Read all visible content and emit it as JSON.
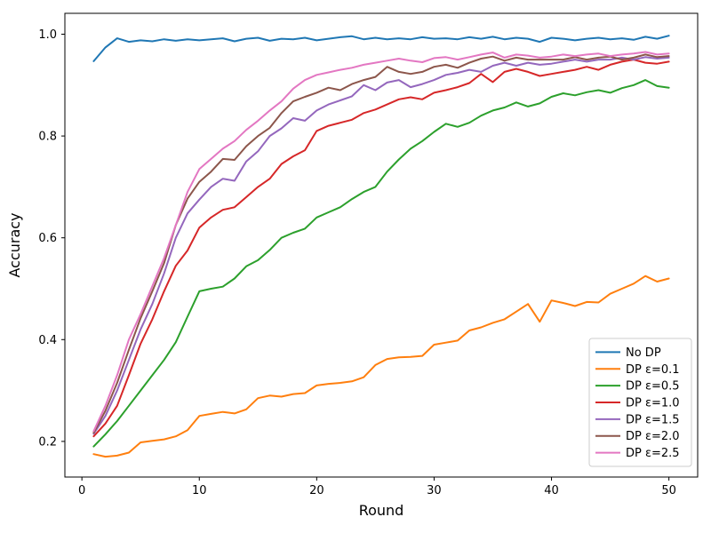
{
  "figure": {
    "background": "#ffffff",
    "spine_color": "#000000",
    "tick_color": "#000000",
    "legend_border_color": "#cccccc",
    "legend_background": "#ffffff"
  },
  "chart_data": {
    "type": "line",
    "title": "",
    "xlabel": "Round",
    "ylabel": "Accuracy",
    "xlim": [
      -1.45,
      52.45
    ],
    "ylim": [
      0.13,
      1.041
    ],
    "xticks": [
      0,
      10,
      20,
      30,
      40,
      50
    ],
    "yticks": [
      0.2,
      0.4,
      0.6,
      0.8,
      1.0
    ],
    "grid": false,
    "legend_position": "lower right",
    "line_width": 2,
    "x": [
      1,
      2,
      3,
      4,
      5,
      6,
      7,
      8,
      9,
      10,
      11,
      12,
      13,
      14,
      15,
      16,
      17,
      18,
      19,
      20,
      21,
      22,
      23,
      24,
      25,
      26,
      27,
      28,
      29,
      30,
      31,
      32,
      33,
      34,
      35,
      36,
      37,
      38,
      39,
      40,
      41,
      42,
      43,
      44,
      45,
      46,
      47,
      48,
      49,
      50
    ],
    "series": [
      {
        "name": "No DP",
        "color": "#1f77b4",
        "values": [
          0.947,
          0.974,
          0.992,
          0.985,
          0.988,
          0.986,
          0.99,
          0.987,
          0.99,
          0.988,
          0.99,
          0.992,
          0.986,
          0.991,
          0.993,
          0.987,
          0.991,
          0.99,
          0.993,
          0.988,
          0.991,
          0.994,
          0.996,
          0.99,
          0.993,
          0.99,
          0.992,
          0.99,
          0.994,
          0.991,
          0.992,
          0.99,
          0.994,
          0.991,
          0.995,
          0.99,
          0.993,
          0.991,
          0.985,
          0.993,
          0.991,
          0.988,
          0.991,
          0.993,
          0.99,
          0.992,
          0.989,
          0.995,
          0.991,
          0.997
        ]
      },
      {
        "name": "DP ε=0.1",
        "color": "#ff7f0e",
        "values": [
          0.175,
          0.17,
          0.172,
          0.178,
          0.198,
          0.201,
          0.204,
          0.21,
          0.222,
          0.25,
          0.254,
          0.258,
          0.255,
          0.263,
          0.285,
          0.29,
          0.288,
          0.293,
          0.295,
          0.31,
          0.313,
          0.315,
          0.318,
          0.326,
          0.35,
          0.362,
          0.365,
          0.366,
          0.368,
          0.39,
          0.394,
          0.398,
          0.418,
          0.424,
          0.433,
          0.44,
          0.455,
          0.47,
          0.435,
          0.477,
          0.472,
          0.466,
          0.474,
          0.473,
          0.49,
          0.5,
          0.51,
          0.525,
          0.514,
          0.52
        ]
      },
      {
        "name": "DP ε=0.5",
        "color": "#2ca02c",
        "values": [
          0.19,
          0.214,
          0.24,
          0.27,
          0.3,
          0.33,
          0.36,
          0.395,
          0.445,
          0.495,
          0.5,
          0.504,
          0.52,
          0.544,
          0.556,
          0.576,
          0.6,
          0.61,
          0.618,
          0.64,
          0.65,
          0.66,
          0.676,
          0.69,
          0.7,
          0.73,
          0.754,
          0.775,
          0.79,
          0.808,
          0.824,
          0.818,
          0.826,
          0.84,
          0.85,
          0.856,
          0.866,
          0.858,
          0.864,
          0.877,
          0.884,
          0.88,
          0.886,
          0.89,
          0.885,
          0.894,
          0.9,
          0.91,
          0.898,
          0.895
        ]
      },
      {
        "name": "DP ε=1.0",
        "color": "#d62728",
        "values": [
          0.21,
          0.235,
          0.27,
          0.33,
          0.392,
          0.44,
          0.495,
          0.545,
          0.575,
          0.62,
          0.64,
          0.655,
          0.66,
          0.68,
          0.7,
          0.716,
          0.745,
          0.76,
          0.772,
          0.81,
          0.82,
          0.826,
          0.832,
          0.845,
          0.852,
          0.862,
          0.872,
          0.876,
          0.872,
          0.885,
          0.89,
          0.896,
          0.904,
          0.922,
          0.906,
          0.926,
          0.932,
          0.926,
          0.918,
          0.922,
          0.926,
          0.93,
          0.936,
          0.93,
          0.94,
          0.946,
          0.95,
          0.944,
          0.942,
          0.946
        ]
      },
      {
        "name": "DP ε=1.5",
        "color": "#9467bd",
        "values": [
          0.215,
          0.25,
          0.3,
          0.36,
          0.42,
          0.47,
          0.53,
          0.6,
          0.648,
          0.675,
          0.7,
          0.716,
          0.712,
          0.75,
          0.77,
          0.8,
          0.815,
          0.835,
          0.83,
          0.85,
          0.862,
          0.87,
          0.878,
          0.9,
          0.89,
          0.905,
          0.91,
          0.896,
          0.902,
          0.91,
          0.92,
          0.924,
          0.93,
          0.926,
          0.938,
          0.944,
          0.938,
          0.944,
          0.94,
          0.942,
          0.946,
          0.95,
          0.946,
          0.95,
          0.95,
          0.954,
          0.95,
          0.955,
          0.952,
          0.954
        ]
      },
      {
        "name": "DP ε=2.0",
        "color": "#8c564b",
        "values": [
          0.217,
          0.26,
          0.315,
          0.38,
          0.442,
          0.495,
          0.55,
          0.625,
          0.677,
          0.71,
          0.73,
          0.755,
          0.753,
          0.78,
          0.8,
          0.816,
          0.845,
          0.868,
          0.877,
          0.885,
          0.895,
          0.89,
          0.902,
          0.91,
          0.916,
          0.936,
          0.926,
          0.922,
          0.926,
          0.936,
          0.94,
          0.934,
          0.944,
          0.952,
          0.956,
          0.948,
          0.954,
          0.95,
          0.95,
          0.95,
          0.95,
          0.955,
          0.95,
          0.954,
          0.956,
          0.95,
          0.954,
          0.96,
          0.955,
          0.957
        ]
      },
      {
        "name": "DP ε=2.5",
        "color": "#e377c2",
        "values": [
          0.22,
          0.27,
          0.33,
          0.4,
          0.45,
          0.505,
          0.56,
          0.625,
          0.69,
          0.735,
          0.755,
          0.775,
          0.79,
          0.812,
          0.83,
          0.85,
          0.868,
          0.893,
          0.91,
          0.92,
          0.925,
          0.93,
          0.934,
          0.94,
          0.944,
          0.948,
          0.952,
          0.948,
          0.945,
          0.953,
          0.955,
          0.95,
          0.955,
          0.96,
          0.964,
          0.954,
          0.96,
          0.958,
          0.954,
          0.956,
          0.96,
          0.957,
          0.96,
          0.962,
          0.957,
          0.96,
          0.962,
          0.965,
          0.96,
          0.962
        ]
      }
    ]
  }
}
